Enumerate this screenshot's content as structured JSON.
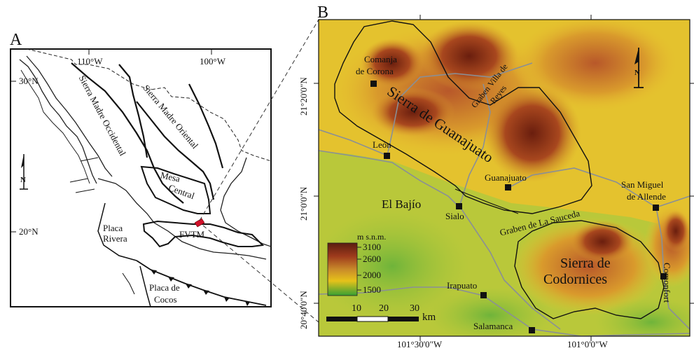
{
  "panel_a": {
    "letter": "A",
    "lon_labels": [
      "110°W",
      "100°W"
    ],
    "lat_labels": [
      "30°N",
      "20°N"
    ],
    "regions": {
      "smoc": "Sierra Madre Occidental",
      "smor": "Sierra Madre Oriental",
      "mesa": "Mesa",
      "central": "Central",
      "fvtm": "FVTM",
      "rivera": [
        "Placa",
        "Rivera"
      ],
      "cocos": [
        "Placa de",
        "Cocos"
      ]
    },
    "north_letter": "N"
  },
  "panel_b": {
    "letter": "B",
    "lat_labels": [
      "21°20'0\"N",
      "21°0'0\"N",
      "20°40'0\"N"
    ],
    "lon_labels": [
      "101°30'0\"W",
      "101°0'0\"W"
    ],
    "places": {
      "comanja": [
        "Comanja",
        "de Corona"
      ],
      "leon": "León",
      "guanajuato": "Guanajuato",
      "sialo": "Sialo",
      "san_miguel": [
        "San Miguel",
        "de Allende"
      ],
      "irapuato": "Irapuato",
      "salamanca": "Salamanca",
      "comonfort": "Comonfort"
    },
    "features": {
      "sierra_guanajuato": "Sierra de Guanajuato",
      "graben_villa": [
        "Graben Villa de",
        "Reyes"
      ],
      "el_bajio": "El Bajío",
      "graben_sauceda": "Graben de La Sauceda",
      "sierra_codornices": [
        "Sierra de",
        "Codornices"
      ]
    },
    "legend": {
      "title": "m s.n.m.",
      "ticks": [
        "3100",
        "2600",
        "2000",
        "1500"
      ],
      "colors": [
        "#5a1e10",
        "#9e3a1c",
        "#c98a2a",
        "#e6c21a",
        "#37a033"
      ]
    },
    "scale": {
      "ticks": [
        "10",
        "20",
        "30"
      ],
      "unit": "km"
    },
    "north_letter": "N"
  }
}
